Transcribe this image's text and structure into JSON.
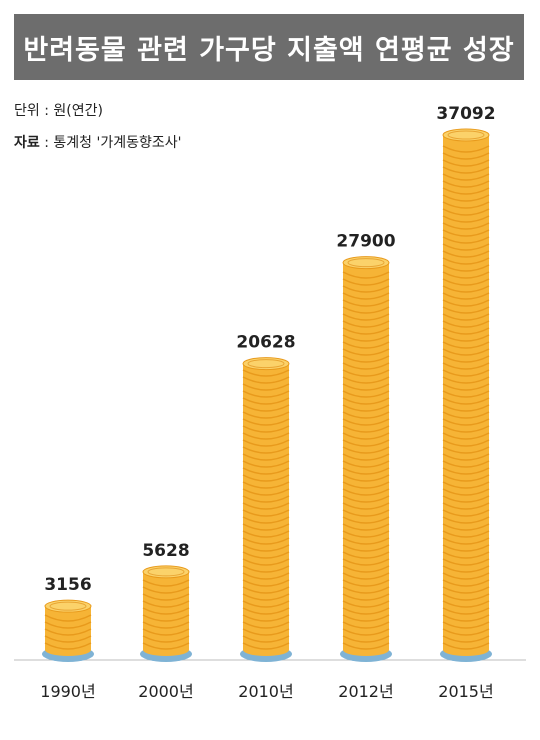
{
  "title": "반려동물 관련 가구당 지출액 연평균 성장",
  "unit_label": "단위 : 원(연간)",
  "source_key": "자료",
  "source_value": " : 통계청 '가계동향조사'",
  "colors": {
    "title_bg": "#6d6d6d",
    "coin_face": "#f6b436",
    "coin_edge": "#e89a1c",
    "coin_shadow": "#7fb3d5",
    "baseline": "#bdbdbd"
  },
  "chart_data": {
    "type": "bar",
    "title": "반려동물 관련 가구당 지출액 연평균 성장",
    "unit": "원(연간)",
    "categories": [
      "1990년",
      "2000년",
      "2010년",
      "2012년",
      "2015년"
    ],
    "values": [
      3156,
      5628,
      20628,
      27900,
      37092
    ],
    "value_labels": [
      "3156",
      "5628",
      "20628",
      "27900",
      "37092"
    ],
    "ylim": [
      0,
      40000
    ],
    "grid": false,
    "legend": "none"
  }
}
